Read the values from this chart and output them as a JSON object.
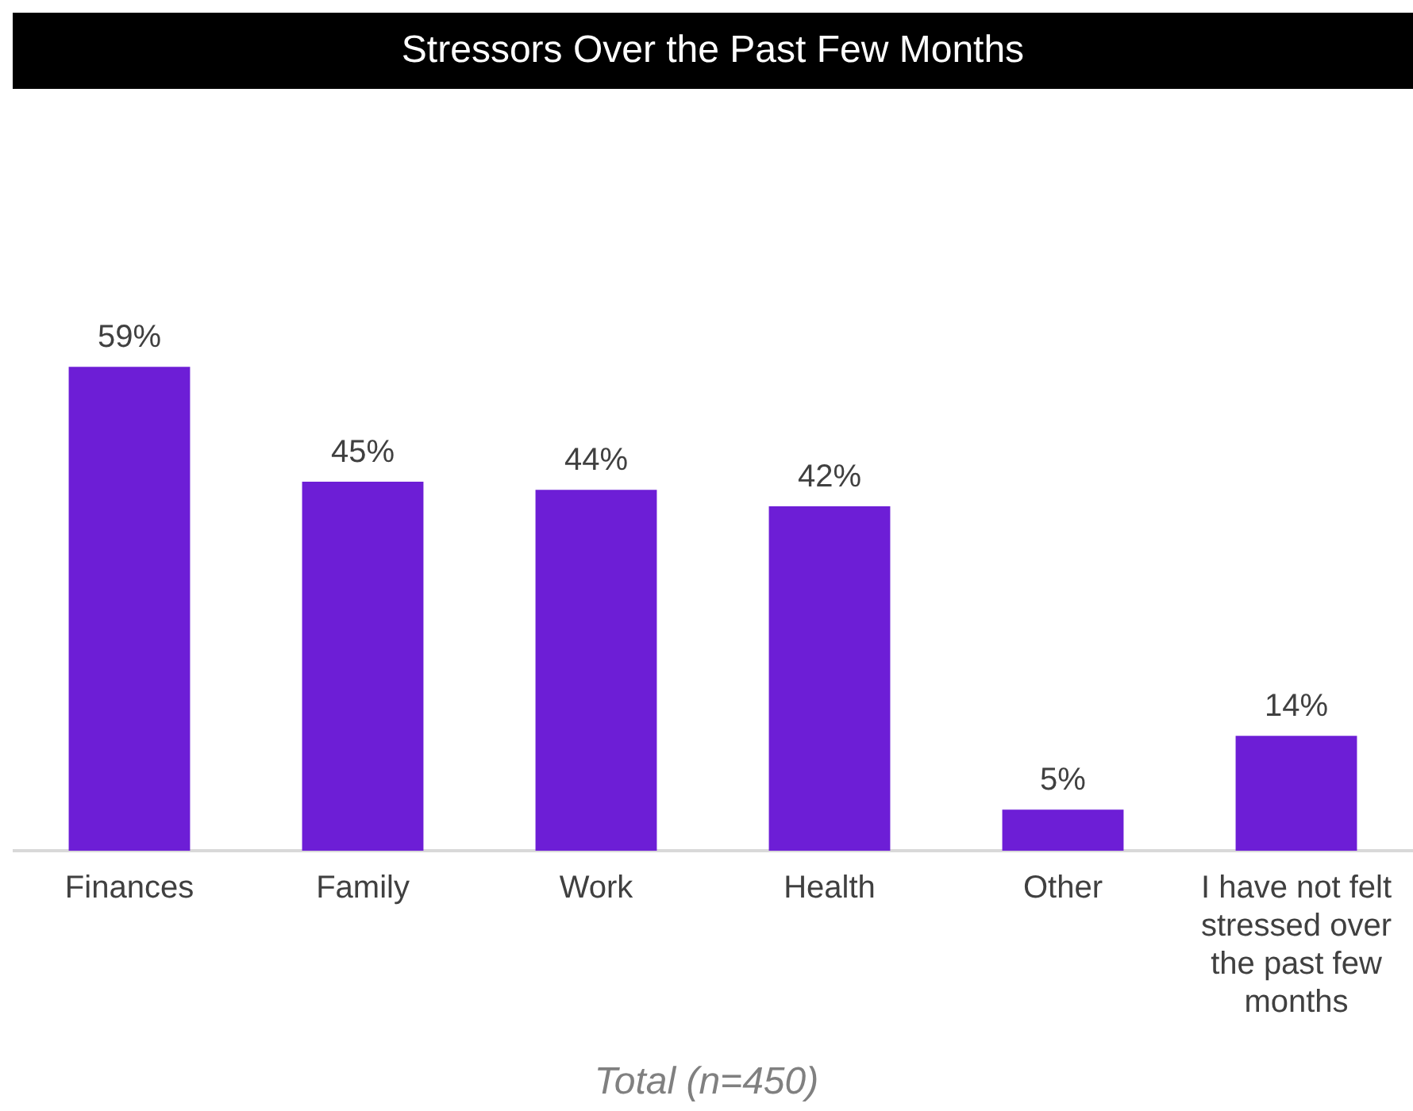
{
  "chart_data": {
    "type": "bar",
    "title": "Stressors Over the Past Few Months",
    "categories": [
      "Finances",
      "Family",
      "Work",
      "Health",
      "Other",
      "I have not felt stressed over the past few months"
    ],
    "values": [
      59,
      45,
      44,
      42,
      5,
      14
    ],
    "color": "#6d1ed6",
    "value_labels": [
      "59%",
      "45%",
      "44%",
      "42%",
      "5%",
      "14%"
    ],
    "tick_labels": "x",
    "grid": false,
    "legend": false,
    "annotations": [
      "Total (n=450)"
    ]
  }
}
